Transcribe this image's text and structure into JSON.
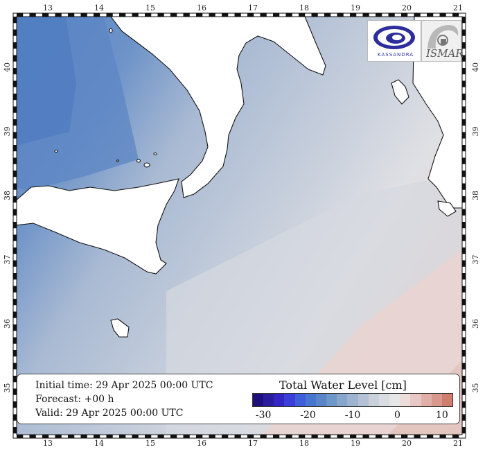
{
  "map": {
    "lon_ticks": [
      "13",
      "14",
      "15",
      "16",
      "17",
      "18",
      "19",
      "20",
      "21"
    ],
    "lat_ticks": [
      "40",
      "39",
      "38",
      "37",
      "36",
      "35"
    ],
    "region": "Central Mediterranean: Sicily, Calabria, Ionian Sea",
    "colors": {
      "deep_negative": "#2a1a8a",
      "negative": "#5b86c6",
      "mild_negative": "#a9bad3",
      "neutral": "#dcdee3",
      "positive": "#e6cfcc",
      "land": "#ffffff"
    }
  },
  "logos": {
    "left": {
      "icon": "kassandra-logo-icon",
      "text": "KASSANDRA"
    },
    "right": {
      "icon": "ismar-logo-icon",
      "text": "ISMAR"
    }
  },
  "info": {
    "initial_time": "Initial time: 29 Apr 2025 00:00 UTC",
    "forecast": "Forecast: +00 h",
    "valid": "Valid: 29 Apr 2025 00:00 UTC"
  },
  "colorbar": {
    "title": "Total Water Level [cm]",
    "tick_labels": [
      "-30",
      "-20",
      "-10",
      "0",
      "10"
    ],
    "tick_values": [
      -30,
      -20,
      -10,
      0,
      10
    ],
    "range": [
      -32.5,
      12.5
    ],
    "colors": [
      "#1e0f7a",
      "#2b1e9e",
      "#3426c2",
      "#3a3fd9",
      "#3f5ed9",
      "#4776d0",
      "#5a86c9",
      "#6f96c8",
      "#86a6cb",
      "#9db3cf",
      "#b4c2d5",
      "#c8d1dc",
      "#d9dde3",
      "#e6e6e6",
      "#ecdcdc",
      "#e8c8c4",
      "#e0b0a8",
      "#d8988c",
      "#cf7e6e"
    ]
  }
}
